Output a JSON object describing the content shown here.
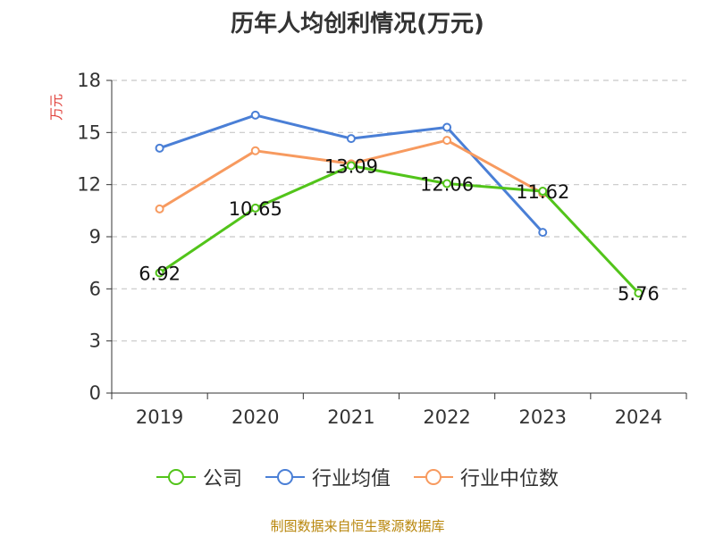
{
  "chart_data": {
    "type": "line",
    "title": "历年人均创利情况(万元)",
    "ylabel": "万元",
    "xlabel": "",
    "categories": [
      "2019",
      "2020",
      "2021",
      "2022",
      "2023",
      "2024"
    ],
    "ylim": [
      0,
      18
    ],
    "yticks": [
      0,
      3,
      6,
      9,
      12,
      15,
      18
    ],
    "grid": true,
    "legend_position": "bottom",
    "series": [
      {
        "name": "公司",
        "color": "#52c41a",
        "values": [
          6.92,
          10.65,
          13.09,
          12.06,
          11.62,
          5.76
        ],
        "show_labels": true
      },
      {
        "name": "行业均值",
        "color": "#4a7fd6",
        "values": [
          14.1,
          16.0,
          14.65,
          15.3,
          9.25,
          null
        ],
        "show_labels": false
      },
      {
        "name": "行业中位数",
        "color": "#f79a5f",
        "values": [
          10.6,
          13.95,
          13.2,
          14.55,
          11.5,
          null
        ],
        "show_labels": false
      }
    ],
    "source": "制图数据来自恒生聚源数据库"
  }
}
